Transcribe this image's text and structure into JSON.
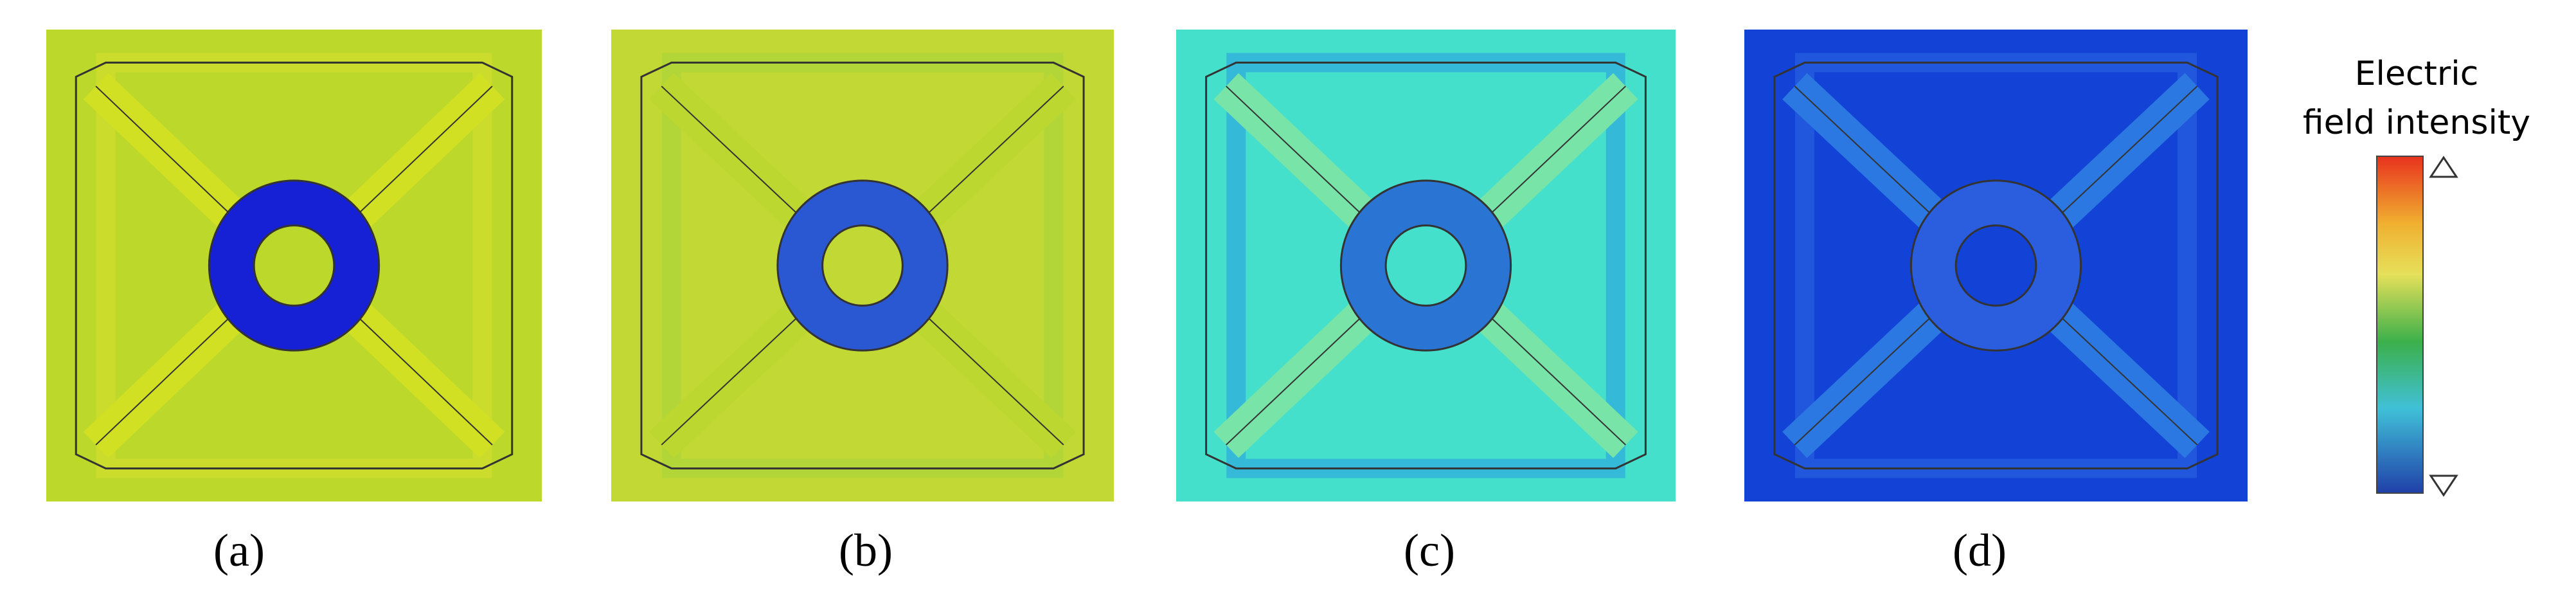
{
  "labels": [
    "(a)",
    "(b)",
    "(c)",
    "(d)"
  ],
  "legend": {
    "title_line1": "Electric",
    "title_line2": "field intensity"
  }
}
